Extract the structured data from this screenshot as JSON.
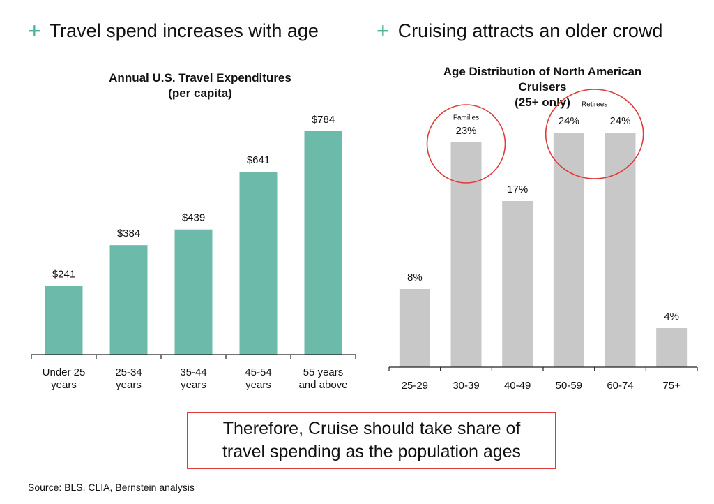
{
  "headings": {
    "left": "Travel spend increases with age",
    "right": "Cruising attracts an older crowd",
    "plus_icon": "+"
  },
  "colors": {
    "accent": "#6cbaaa",
    "plus": "#4db39c",
    "gray_bar": "#c8c8c8",
    "highlight": "#e03a3a"
  },
  "conclusion": {
    "line1": "Therefore, Cruise should take share of",
    "line2": "travel spending as the population ages"
  },
  "source": "Source: BLS, CLIA, Bernstein analysis",
  "chart_data": [
    {
      "type": "bar",
      "title": [
        "Annual U.S. Travel Expenditures",
        "(per capita)"
      ],
      "categories": [
        [
          "Under 25",
          "years"
        ],
        [
          "25-34",
          "years"
        ],
        [
          "35-44",
          "years"
        ],
        [
          "45-54",
          "years"
        ],
        [
          "55 years",
          "and above"
        ]
      ],
      "values": [
        241,
        384,
        439,
        641,
        784
      ],
      "labels": [
        "$241",
        "$384",
        "$439",
        "$641",
        "$784"
      ],
      "ylim": [
        0,
        950
      ],
      "grid": false,
      "color": "#6cbaaa"
    },
    {
      "type": "bar",
      "title": [
        "Age Distribution of North American",
        "Cruisers",
        "(25+ only)"
      ],
      "categories": [
        "25-29",
        "30-39",
        "40-49",
        "50-59",
        "60-74",
        "75+"
      ],
      "values": [
        8,
        23,
        17,
        24,
        24,
        4
      ],
      "labels": [
        "8%",
        "23%",
        "17%",
        "24%",
        "24%",
        "4%"
      ],
      "ylim": [
        0,
        29
      ],
      "grid": false,
      "color": "#c8c8c8",
      "annotations": [
        {
          "label": "Families",
          "categories": [
            "30-39"
          ]
        },
        {
          "label": "Retirees",
          "categories": [
            "50-59",
            "60-74"
          ]
        }
      ]
    }
  ]
}
